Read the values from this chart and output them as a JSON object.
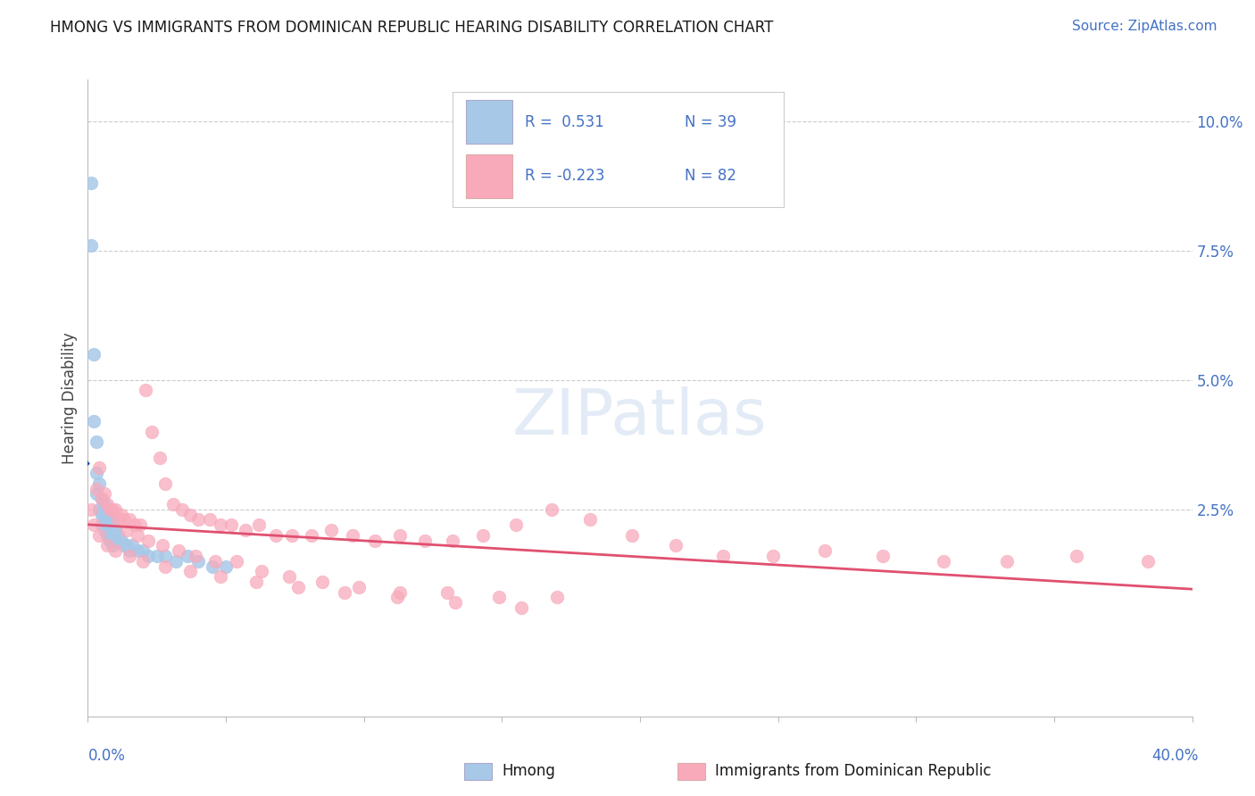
{
  "title": "HMONG VS IMMIGRANTS FROM DOMINICAN REPUBLIC HEARING DISABILITY CORRELATION CHART",
  "source": "Source: ZipAtlas.com",
  "ylabel": "Hearing Disability",
  "ylabel_right_ticks": [
    "10.0%",
    "7.5%",
    "5.0%",
    "2.5%"
  ],
  "ylabel_right_vals": [
    0.1,
    0.075,
    0.05,
    0.025
  ],
  "xlim": [
    0.0,
    0.4
  ],
  "ylim": [
    -0.015,
    0.108
  ],
  "hmong_color": "#a8c8e8",
  "dr_color": "#f8aabb",
  "trend_blue": "#1a4faa",
  "trend_pink": "#e05070",
  "background": "#ffffff",
  "hmong_x": [
    0.001,
    0.001,
    0.002,
    0.002,
    0.003,
    0.003,
    0.003,
    0.004,
    0.004,
    0.005,
    0.005,
    0.005,
    0.006,
    0.006,
    0.006,
    0.007,
    0.007,
    0.008,
    0.008,
    0.009,
    0.009,
    0.01,
    0.01,
    0.011,
    0.012,
    0.013,
    0.014,
    0.015,
    0.016,
    0.018,
    0.02,
    0.022,
    0.025,
    0.028,
    0.032,
    0.036,
    0.04,
    0.045,
    0.05
  ],
  "hmong_y": [
    0.088,
    0.076,
    0.055,
    0.042,
    0.038,
    0.032,
    0.028,
    0.03,
    0.025,
    0.027,
    0.024,
    0.022,
    0.026,
    0.023,
    0.021,
    0.024,
    0.02,
    0.023,
    0.019,
    0.022,
    0.018,
    0.021,
    0.019,
    0.02,
    0.019,
    0.018,
    0.018,
    0.017,
    0.018,
    0.017,
    0.017,
    0.016,
    0.016,
    0.016,
    0.015,
    0.016,
    0.015,
    0.014,
    0.014
  ],
  "dr_x": [
    0.003,
    0.005,
    0.007,
    0.008,
    0.01,
    0.012,
    0.013,
    0.015,
    0.017,
    0.019,
    0.021,
    0.023,
    0.026,
    0.028,
    0.031,
    0.034,
    0.037,
    0.04,
    0.044,
    0.048,
    0.052,
    0.057,
    0.062,
    0.068,
    0.074,
    0.081,
    0.088,
    0.096,
    0.104,
    0.113,
    0.122,
    0.132,
    0.143,
    0.155,
    0.168,
    0.182,
    0.197,
    0.213,
    0.23,
    0.248,
    0.267,
    0.288,
    0.31,
    0.333,
    0.358,
    0.384,
    0.004,
    0.006,
    0.009,
    0.011,
    0.014,
    0.018,
    0.022,
    0.027,
    0.033,
    0.039,
    0.046,
    0.054,
    0.063,
    0.073,
    0.085,
    0.098,
    0.113,
    0.13,
    0.149,
    0.17,
    0.001,
    0.002,
    0.004,
    0.007,
    0.01,
    0.015,
    0.02,
    0.028,
    0.037,
    0.048,
    0.061,
    0.076,
    0.093,
    0.112,
    0.133,
    0.157
  ],
  "dr_y": [
    0.029,
    0.027,
    0.026,
    0.025,
    0.025,
    0.024,
    0.023,
    0.023,
    0.022,
    0.022,
    0.048,
    0.04,
    0.035,
    0.03,
    0.026,
    0.025,
    0.024,
    0.023,
    0.023,
    0.022,
    0.022,
    0.021,
    0.022,
    0.02,
    0.02,
    0.02,
    0.021,
    0.02,
    0.019,
    0.02,
    0.019,
    0.019,
    0.02,
    0.022,
    0.025,
    0.023,
    0.02,
    0.018,
    0.016,
    0.016,
    0.017,
    0.016,
    0.015,
    0.015,
    0.016,
    0.015,
    0.033,
    0.028,
    0.025,
    0.023,
    0.021,
    0.02,
    0.019,
    0.018,
    0.017,
    0.016,
    0.015,
    0.015,
    0.013,
    0.012,
    0.011,
    0.01,
    0.009,
    0.009,
    0.008,
    0.008,
    0.025,
    0.022,
    0.02,
    0.018,
    0.017,
    0.016,
    0.015,
    0.014,
    0.013,
    0.012,
    0.011,
    0.01,
    0.009,
    0.008,
    0.007,
    0.006
  ]
}
